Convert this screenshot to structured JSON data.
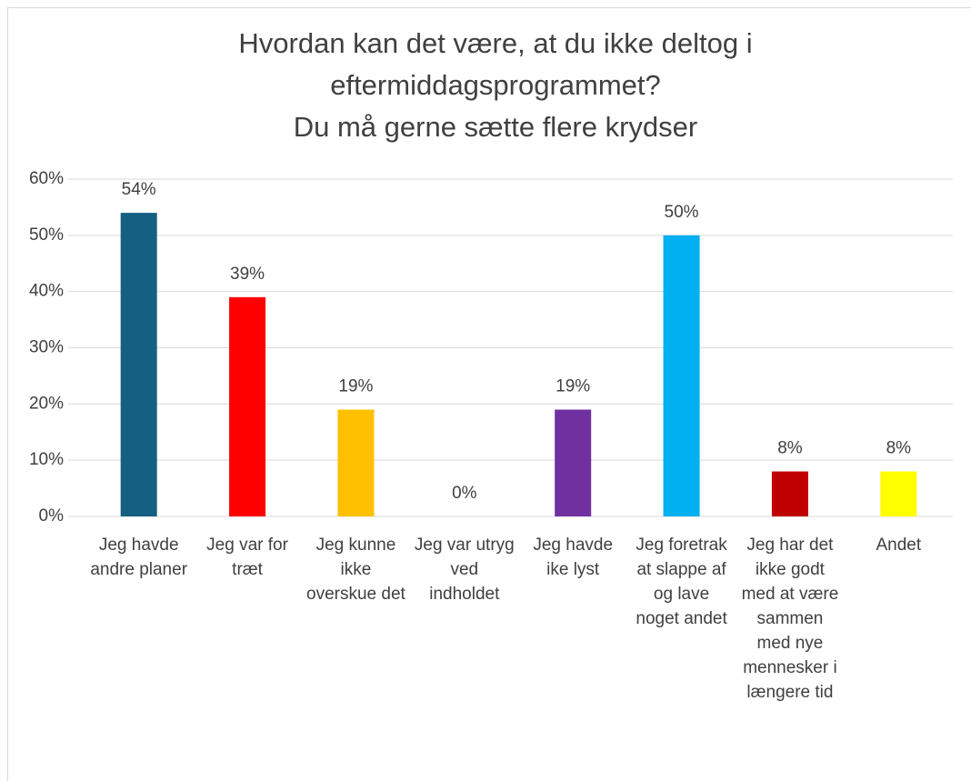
{
  "chart_data": {
    "type": "bar",
    "title": "Hvordan kan det være, at du ikke deltog i eftermiddagsprogrammet?",
    "subtitle": "Du må gerne sætte flere krydser",
    "categories": [
      "Jeg havde andre planer",
      "Jeg var for træt",
      "Jeg kunne ikke overskue det",
      "Jeg var utryg ved indholdet",
      "Jeg havde ike lyst",
      "Jeg foretrak at slappe af og lave noget andet",
      "Jeg har det ikke godt med at være sammen med nye mennesker i længere tid",
      "Andet"
    ],
    "values": [
      54,
      39,
      19,
      0,
      19,
      50,
      8,
      8
    ],
    "value_labels": [
      "54%",
      "39%",
      "19%",
      "0%",
      "19%",
      "50%",
      "8%",
      "8%"
    ],
    "colors": [
      "#156082",
      "#ff0000",
      "#ffc000",
      "#a5a5a5",
      "#7030a0",
      "#00b0f0",
      "#c00000",
      "#ffff00"
    ],
    "ylim": [
      0,
      60
    ],
    "yticks": [
      {
        "value": 0,
        "label": "0%"
      },
      {
        "value": 10,
        "label": "10%"
      },
      {
        "value": 20,
        "label": "20%"
      },
      {
        "value": 30,
        "label": "30%"
      },
      {
        "value": 40,
        "label": "40%"
      },
      {
        "value": 50,
        "label": "50%"
      },
      {
        "value": 60,
        "label": "60%"
      }
    ],
    "grid": true
  }
}
